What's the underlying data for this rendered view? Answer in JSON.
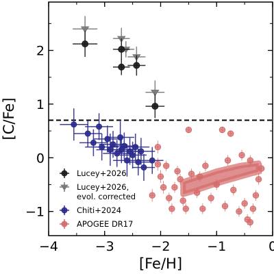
{
  "chart_data": {
    "type": "scatter",
    "title": "",
    "xlabel": "[Fe/H]",
    "ylabel": "[C/Fe]",
    "xlim": [
      -4.0,
      0.0
    ],
    "ylim": [
      -1.45,
      2.9
    ],
    "x_ticks": [
      {
        "value": -4,
        "label": "−4"
      },
      {
        "value": -3,
        "label": "−3"
      },
      {
        "value": -2,
        "label": "−2"
      },
      {
        "value": -1,
        "label": "−1"
      },
      {
        "value": 0,
        "label": "0"
      }
    ],
    "y_ticks": [
      {
        "value": -1,
        "label": "−1"
      },
      {
        "value": 0,
        "label": "0"
      },
      {
        "value": 1,
        "label": "1"
      },
      {
        "value": 2,
        "label": "2"
      }
    ],
    "grid": false,
    "legend_position": "lower-left",
    "reference_lines": [
      {
        "orientation": "horizontal",
        "y": 0.7,
        "style": "dashed",
        "color": "#000000"
      }
    ],
    "series": [
      {
        "name": "Lucey+2026",
        "marker": "circle",
        "color": "#1a1a1a",
        "error_bars": true,
        "points": [
          {
            "x": -3.35,
            "y": 2.12,
            "xerr": 0.22,
            "yerr": 0.24
          },
          {
            "x": -2.7,
            "y": 2.02,
            "xerr": 0.15,
            "yerr": 0.2
          },
          {
            "x": -2.7,
            "y": 1.69,
            "xerr": 0.15,
            "yerr": 0.15
          },
          {
            "x": -2.43,
            "y": 1.72,
            "xerr": 0.16,
            "yerr": 0.19
          },
          {
            "x": -2.1,
            "y": 0.96,
            "xerr": 0.17,
            "yerr": 0.22
          }
        ]
      },
      {
        "name": "Lucey+2026, evol. corrected",
        "marker": "triangle-down",
        "color": "#777777",
        "error_bars": true,
        "points": [
          {
            "x": -3.35,
            "y": 2.4,
            "xerr": 0.22,
            "yerr": 0.24
          },
          {
            "x": -2.7,
            "y": 2.22,
            "xerr": 0.15,
            "yerr": 0.2
          },
          {
            "x": -2.62,
            "y": 2.02,
            "xerr": 0.15,
            "yerr": 0.15
          },
          {
            "x": -2.43,
            "y": 1.88,
            "xerr": 0.16,
            "yerr": 0.19
          },
          {
            "x": -2.1,
            "y": 1.22,
            "xerr": 0.17,
            "yerr": 0.22
          }
        ]
      },
      {
        "name": "Chiti+2024",
        "marker": "circle",
        "color": "#2a2a8c",
        "error_bars": true,
        "points": [
          {
            "x": -3.55,
            "y": 0.62,
            "xerr": 0.25,
            "yerr": 0.3
          },
          {
            "x": -3.3,
            "y": 0.45,
            "xerr": 0.25,
            "yerr": 0.25
          },
          {
            "x": -3.2,
            "y": 0.28,
            "xerr": 0.25,
            "yerr": 0.25
          },
          {
            "x": -3.1,
            "y": 0.58,
            "xerr": 0.25,
            "yerr": 0.25
          },
          {
            "x": -3.05,
            "y": 0.2,
            "xerr": 0.3,
            "yerr": 0.25
          },
          {
            "x": -2.95,
            "y": 0.35,
            "xerr": 0.25,
            "yerr": 0.25
          },
          {
            "x": -2.9,
            "y": 0.15,
            "xerr": 0.25,
            "yerr": 0.3
          },
          {
            "x": -2.85,
            "y": 0.25,
            "xerr": 0.25,
            "yerr": 0.25
          },
          {
            "x": -2.78,
            "y": 0.08,
            "xerr": 0.25,
            "yerr": 0.25
          },
          {
            "x": -2.72,
            "y": 0.38,
            "xerr": 0.25,
            "yerr": 0.3
          },
          {
            "x": -2.7,
            "y": 0.15,
            "xerr": 0.25,
            "yerr": 0.25
          },
          {
            "x": -2.65,
            "y": 0.22,
            "xerr": 0.25,
            "yerr": 0.25
          },
          {
            "x": -2.6,
            "y": -0.05,
            "xerr": 0.25,
            "yerr": 0.3
          },
          {
            "x": -2.55,
            "y": 0.12,
            "xerr": 0.25,
            "yerr": 0.25
          },
          {
            "x": -2.5,
            "y": 0.05,
            "xerr": 0.25,
            "yerr": 0.25
          },
          {
            "x": -2.45,
            "y": 0.2,
            "xerr": 0.25,
            "yerr": 0.25
          },
          {
            "x": -2.4,
            "y": -0.08,
            "xerr": 0.25,
            "yerr": 0.25
          },
          {
            "x": -2.35,
            "y": 0.12,
            "xerr": 0.25,
            "yerr": 0.25
          },
          {
            "x": -2.3,
            "y": -0.18,
            "xerr": 0.2,
            "yerr": 0.25
          },
          {
            "x": -2.15,
            "y": -0.05,
            "xerr": 0.2,
            "yerr": 0.25
          }
        ]
      },
      {
        "name": "APOGEE DR17",
        "marker": "circle",
        "color": "#d46a6a",
        "error_bars": true,
        "points": [
          {
            "x": -1.5,
            "y": 0.52,
            "xerr": 0.03,
            "yerr": 0.05
          },
          {
            "x": -0.9,
            "y": 0.52,
            "xerr": 0.03,
            "yerr": 0.05
          },
          {
            "x": -0.75,
            "y": 0.45,
            "xerr": 0.03,
            "yerr": 0.05
          },
          {
            "x": -2.05,
            "y": 0.2,
            "xerr": 0.05,
            "yerr": 0.12
          },
          {
            "x": -2.05,
            "y": -0.12,
            "xerr": 0.05,
            "yerr": 0.12
          },
          {
            "x": -2.0,
            "y": -0.35,
            "xerr": 0.05,
            "yerr": 0.12
          },
          {
            "x": -1.95,
            "y": -0.55,
            "xerr": 0.05,
            "yerr": 0.12
          },
          {
            "x": -2.15,
            "y": -0.7,
            "xerr": 0.05,
            "yerr": 0.12
          },
          {
            "x": -1.85,
            "y": -0.75,
            "xerr": 0.05,
            "yerr": 0.1
          },
          {
            "x": -1.8,
            "y": -0.95,
            "xerr": 0.05,
            "yerr": 0.1
          },
          {
            "x": -1.75,
            "y": -0.55,
            "xerr": 0.04,
            "yerr": 0.1
          },
          {
            "x": -1.65,
            "y": -0.4,
            "xerr": 0.04,
            "yerr": 0.1
          },
          {
            "x": -1.6,
            "y": -0.8,
            "xerr": 0.04,
            "yerr": 0.1
          },
          {
            "x": -1.55,
            "y": -0.95,
            "xerr": 0.04,
            "yerr": 0.1
          },
          {
            "x": -1.45,
            "y": -0.3,
            "xerr": 0.04,
            "yerr": 0.1
          },
          {
            "x": -1.35,
            "y": -0.65,
            "xerr": 0.04,
            "yerr": 0.1
          },
          {
            "x": -1.25,
            "y": -0.95,
            "xerr": 0.04,
            "yerr": 0.1
          },
          {
            "x": -1.2,
            "y": -0.15,
            "xerr": 0.04,
            "yerr": 0.1
          },
          {
            "x": -1.1,
            "y": -0.75,
            "xerr": 0.04,
            "yerr": 0.1
          },
          {
            "x": -1.0,
            "y": -0.5,
            "xerr": 0.04,
            "yerr": 0.1
          },
          {
            "x": -0.85,
            "y": -0.9,
            "xerr": 0.04,
            "yerr": 0.1
          },
          {
            "x": -0.7,
            "y": -0.6,
            "xerr": 0.04,
            "yerr": 0.1
          },
          {
            "x": -0.6,
            "y": -1.0,
            "xerr": 0.04,
            "yerr": 0.1
          },
          {
            "x": -0.5,
            "y": -0.85,
            "xerr": 0.04,
            "yerr": 0.1
          },
          {
            "x": -0.45,
            "y": -1.15,
            "xerr": 0.04,
            "yerr": 0.1
          },
          {
            "x": -0.4,
            "y": -1.2,
            "xerr": 0.04,
            "yerr": 0.1
          },
          {
            "x": -0.35,
            "y": -0.95,
            "xerr": 0.04,
            "yerr": 0.1
          },
          {
            "x": -0.3,
            "y": -0.7,
            "xerr": 0.04,
            "yerr": 0.1
          },
          {
            "x": -0.25,
            "y": -0.4,
            "xerr": 0.04,
            "yerr": 0.1
          },
          {
            "x": -0.2,
            "y": -0.2,
            "xerr": 0.04,
            "yerr": 0.1
          },
          {
            "x": -0.55,
            "y": 0.05,
            "xerr": 0.04,
            "yerr": 0.1
          },
          {
            "x": -0.4,
            "y": -0.05,
            "xerr": 0.04,
            "yerr": 0.1
          },
          {
            "x": -0.8,
            "y": -0.05,
            "xerr": 0.04,
            "yerr": 0.1
          },
          {
            "x": -1.3,
            "y": -0.35,
            "xerr": 0.04,
            "yerr": 0.1
          },
          {
            "x": -1.7,
            "y": -0.25,
            "xerr": 0.04,
            "yerr": 0.1
          },
          {
            "x": -1.9,
            "y": -0.15,
            "xerr": 0.04,
            "yerr": 0.1
          }
        ]
      }
    ],
    "dense_regions": [
      {
        "series": "APOGEE DR17",
        "description_points": [
          [
            -1.6,
            -0.68
          ],
          [
            -1.4,
            -0.62
          ],
          [
            -1.2,
            -0.55
          ],
          [
            -1.0,
            -0.48
          ],
          [
            -0.8,
            -0.42
          ],
          [
            -0.6,
            -0.36
          ],
          [
            -0.4,
            -0.3
          ],
          [
            -0.25,
            -0.26
          ],
          [
            -0.25,
            -0.1
          ],
          [
            -0.4,
            -0.12
          ],
          [
            -0.6,
            -0.15
          ],
          [
            -0.8,
            -0.2
          ],
          [
            -1.0,
            -0.25
          ],
          [
            -1.2,
            -0.32
          ],
          [
            -1.4,
            -0.38
          ],
          [
            -1.6,
            -0.45
          ]
        ]
      }
    ],
    "legend": [
      {
        "label_lines": [
          "Lucey+2026"
        ],
        "marker": "circle",
        "color": "#1a1a1a"
      },
      {
        "label_lines": [
          "Lucey+2026,",
          "evol. corrected"
        ],
        "marker": "triangle-down",
        "color": "#777777"
      },
      {
        "label_lines": [
          "Chiti+2024"
        ],
        "marker": "circle",
        "color": "#2a2a8c"
      },
      {
        "label_lines": [
          "APOGEE DR17"
        ],
        "marker": "circle",
        "color": "#d46a6a"
      }
    ]
  }
}
